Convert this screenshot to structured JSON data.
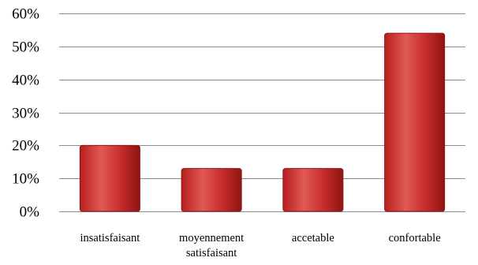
{
  "chart_data": {
    "type": "bar",
    "title": "",
    "xlabel": "",
    "ylabel": "",
    "categories": [
      [
        "insatisfaisant"
      ],
      [
        "moyennement",
        "satisfaisant"
      ],
      [
        "accetable"
      ],
      [
        "confortable"
      ]
    ],
    "values": [
      0.2,
      0.13,
      0.13,
      0.54
    ],
    "ylim": [
      0,
      0.6
    ],
    "y_ticks": [
      0,
      0.1,
      0.2,
      0.3,
      0.4,
      0.5,
      0.6
    ],
    "y_tick_labels": [
      "0%",
      "10%",
      "20%",
      "30%",
      "40%",
      "50%",
      "60%"
    ],
    "grid": true,
    "legend": "none",
    "colors": {
      "bar_light": "#e8625c",
      "bar_main": "#c42a2a",
      "bar_dark": "#8e1414",
      "gridline": "#8c8c8c"
    }
  }
}
